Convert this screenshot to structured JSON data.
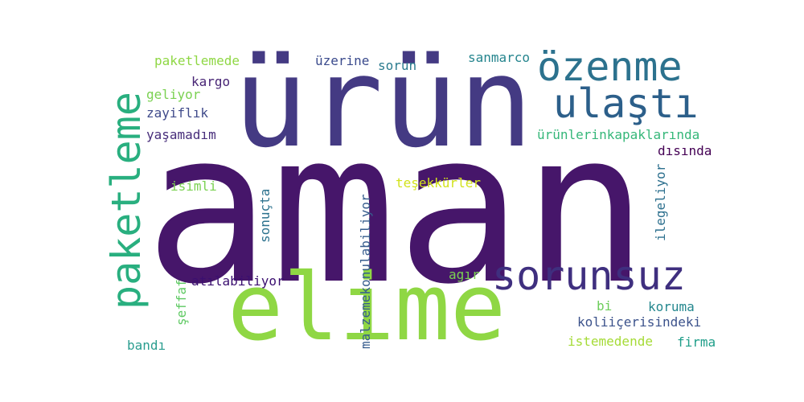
{
  "words": [
    {
      "id": "aman",
      "text": "aman",
      "color": "#46166a"
    },
    {
      "id": "urun",
      "text": "ürün",
      "color": "#443a83"
    },
    {
      "id": "elime",
      "text": "elime",
      "color": "#8fd744"
    },
    {
      "id": "ozenme",
      "text": "özenme",
      "color": "#2c728e"
    },
    {
      "id": "ulasti",
      "text": "ulaştı",
      "color": "#2c5f8a"
    },
    {
      "id": "paketleme",
      "text": "paketleme",
      "color": "#29af7f"
    },
    {
      "id": "sorunsuz",
      "text": "sorunsuz",
      "color": "#3f2f7f"
    },
    {
      "id": "paketlemede",
      "text": "paketlemede",
      "color": "#8fd744"
    },
    {
      "id": "uzerine",
      "text": "üzerine",
      "color": "#3a4a8c"
    },
    {
      "id": "sorun",
      "text": "sorun",
      "color": "#2a7b8e"
    },
    {
      "id": "sanmarco",
      "text": "sanmarco",
      "color": "#25858e"
    },
    {
      "id": "kargo",
      "text": "kargo",
      "color": "#482575"
    },
    {
      "id": "geliyor",
      "text": "geliyor",
      "color": "#7ad151"
    },
    {
      "id": "zayiflik",
      "text": "zayiflık",
      "color": "#3f4a8a"
    },
    {
      "id": "yasamadim",
      "text": "yaşamadım",
      "color": "#472d7b"
    },
    {
      "id": "urunlerinkapaklarinda",
      "text": "ürünlerinkapaklarında",
      "color": "#35b779"
    },
    {
      "id": "disinda",
      "text": "dısında",
      "color": "#440154"
    },
    {
      "id": "isimli",
      "text": "isimli",
      "color": "#7ad151"
    },
    {
      "id": "tesekkurler",
      "text": "teşekkürler",
      "color": "#d2e21b"
    },
    {
      "id": "sonucta",
      "text": "sonuçta",
      "color": "#2c728e"
    },
    {
      "id": "malzemekonulabiliyor",
      "text": "malzemekonulabiliyor",
      "color": "#365c8d"
    },
    {
      "id": "ilegeliyor",
      "text": "ilegeliyor",
      "color": "#2d708e"
    },
    {
      "id": "seffaf",
      "text": "şeffaf",
      "color": "#5ec962"
    },
    {
      "id": "atilabiliyor",
      "text": "atılabiliyor",
      "color": "#3b0f70"
    },
    {
      "id": "agir",
      "text": "agır",
      "color": "#7ad151"
    },
    {
      "id": "bi",
      "text": "bi",
      "color": "#6ccd5a"
    },
    {
      "id": "koruma",
      "text": "koruma",
      "color": "#24878e"
    },
    {
      "id": "koliicerisindeki",
      "text": "koliiçerisindeki",
      "color": "#3b528b"
    },
    {
      "id": "bandi",
      "text": "bandı",
      "color": "#2a9d8f"
    },
    {
      "id": "istemedende",
      "text": "istemedende",
      "color": "#a5db36"
    },
    {
      "id": "firma",
      "text": "firma",
      "color": "#1f9e89"
    }
  ]
}
